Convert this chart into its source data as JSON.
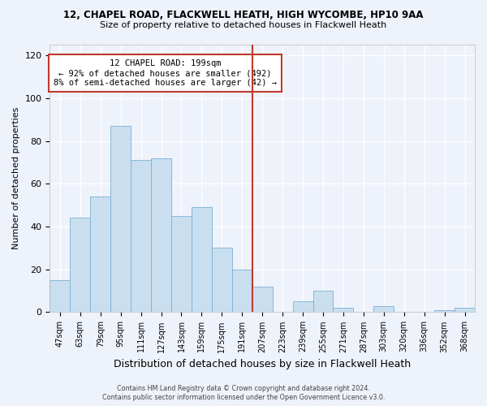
{
  "title1": "12, CHAPEL ROAD, FLACKWELL HEATH, HIGH WYCOMBE, HP10 9AA",
  "title2": "Size of property relative to detached houses in Flackwell Heath",
  "xlabel": "Distribution of detached houses by size in Flackwell Heath",
  "ylabel": "Number of detached properties",
  "bar_labels": [
    "47sqm",
    "63sqm",
    "79sqm",
    "95sqm",
    "111sqm",
    "127sqm",
    "143sqm",
    "159sqm",
    "175sqm",
    "191sqm",
    "207sqm",
    "223sqm",
    "239sqm",
    "255sqm",
    "271sqm",
    "287sqm",
    "303sqm",
    "320sqm",
    "336sqm",
    "352sqm",
    "368sqm"
  ],
  "bar_values": [
    15,
    44,
    54,
    87,
    71,
    72,
    45,
    49,
    30,
    20,
    12,
    0,
    5,
    10,
    2,
    0,
    3,
    0,
    0,
    1,
    2
  ],
  "bar_color": "#c9dff0",
  "bar_edge_color": "#7ab0d4",
  "vline_color": "#c0392b",
  "annotation_title": "12 CHAPEL ROAD: 199sqm",
  "annotation_line1": "← 92% of detached houses are smaller (492)",
  "annotation_line2": "8% of semi-detached houses are larger (42) →",
  "ylim": [
    0,
    125
  ],
  "yticks": [
    0,
    20,
    40,
    60,
    80,
    100,
    120
  ],
  "footer1": "Contains HM Land Registry data © Crown copyright and database right 2024.",
  "footer2": "Contains public sector information licensed under the Open Government Licence v3.0.",
  "bg_color": "#eef2fa",
  "grid_color": "#ffffff",
  "vline_xindex": 10
}
